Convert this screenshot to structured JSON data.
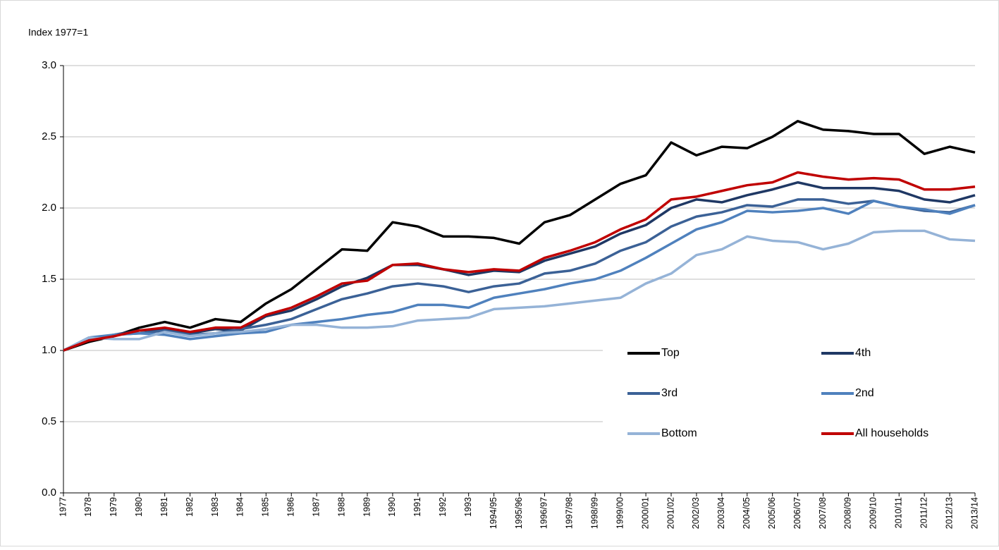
{
  "chart_data": {
    "type": "line",
    "y_axis_label": "Index 1977=1",
    "categories": [
      "1977",
      "1978",
      "1979",
      "1980",
      "1981",
      "1982",
      "1983",
      "1984",
      "1985",
      "1986",
      "1987",
      "1988",
      "1989",
      "1990",
      "1991",
      "1992",
      "1993",
      "1994/95",
      "1995/96",
      "1996/97",
      "1997/98",
      "1998/99",
      "1999/00",
      "2000/01",
      "2001/02",
      "2002/03",
      "2003/04",
      "2004/05",
      "2005/06",
      "2006/07",
      "2007/08",
      "2008/09",
      "2009/10",
      "2010/11",
      "2011/12",
      "2012/13",
      "2013/14"
    ],
    "ylim": [
      0,
      3
    ],
    "yticks": [
      {
        "value": 0,
        "label": "0.0"
      },
      0.5,
      {
        "value": 1,
        "label": "1.0"
      },
      1.5,
      {
        "value": 2,
        "label": "2.0"
      },
      2.5,
      {
        "value": 3,
        "label": "3.0"
      }
    ],
    "grid": true,
    "legend_position": "lower right",
    "series": [
      {
        "name": "Top",
        "color": "#000000",
        "values": [
          1.0,
          1.06,
          1.1,
          1.16,
          1.2,
          1.16,
          1.22,
          1.2,
          1.33,
          1.43,
          1.57,
          1.71,
          1.7,
          1.9,
          1.87,
          1.8,
          1.8,
          1.79,
          1.75,
          1.9,
          1.95,
          2.06,
          2.17,
          2.23,
          2.46,
          2.37,
          2.43,
          2.42,
          2.5,
          2.61,
          2.55,
          2.54,
          2.52,
          2.52,
          2.38,
          2.43,
          2.39
        ]
      },
      {
        "name": "4th",
        "color": "#1f3864",
        "values": [
          1.0,
          1.07,
          1.11,
          1.14,
          1.15,
          1.12,
          1.15,
          1.14,
          1.24,
          1.28,
          1.36,
          1.45,
          1.51,
          1.6,
          1.6,
          1.57,
          1.53,
          1.56,
          1.55,
          1.63,
          1.68,
          1.73,
          1.82,
          1.88,
          2.0,
          2.06,
          2.04,
          2.09,
          2.13,
          2.18,
          2.14,
          2.14,
          2.14,
          2.12,
          2.06,
          2.04,
          2.09
        ]
      },
      {
        "name": "3rd",
        "color": "#3b6196",
        "values": [
          1.0,
          1.08,
          1.11,
          1.12,
          1.14,
          1.11,
          1.12,
          1.15,
          1.18,
          1.22,
          1.29,
          1.36,
          1.4,
          1.45,
          1.47,
          1.45,
          1.41,
          1.45,
          1.47,
          1.54,
          1.56,
          1.61,
          1.7,
          1.76,
          1.87,
          1.94,
          1.97,
          2.02,
          2.01,
          2.06,
          2.06,
          2.03,
          2.05,
          2.01,
          1.98,
          1.97,
          2.02
        ]
      },
      {
        "name": "2nd",
        "color": "#4f81bd",
        "values": [
          1.0,
          1.09,
          1.11,
          1.12,
          1.11,
          1.08,
          1.1,
          1.12,
          1.13,
          1.18,
          1.2,
          1.22,
          1.25,
          1.27,
          1.32,
          1.32,
          1.3,
          1.37,
          1.4,
          1.43,
          1.47,
          1.5,
          1.56,
          1.65,
          1.75,
          1.85,
          1.9,
          1.98,
          1.97,
          1.98,
          2.0,
          1.96,
          2.05,
          2.01,
          1.99,
          1.96,
          2.02
        ]
      },
      {
        "name": "Bottom",
        "color": "#95b3d7",
        "values": [
          1.0,
          1.09,
          1.08,
          1.08,
          1.13,
          1.1,
          1.12,
          1.13,
          1.15,
          1.18,
          1.18,
          1.16,
          1.16,
          1.17,
          1.21,
          1.22,
          1.23,
          1.29,
          1.3,
          1.31,
          1.33,
          1.35,
          1.37,
          1.47,
          1.54,
          1.67,
          1.71,
          1.8,
          1.77,
          1.76,
          1.71,
          1.75,
          1.83,
          1.84,
          1.84,
          1.78,
          1.77
        ]
      },
      {
        "name": "All households",
        "color": "#c00000",
        "values": [
          1.0,
          1.07,
          1.1,
          1.14,
          1.16,
          1.13,
          1.16,
          1.16,
          1.25,
          1.3,
          1.38,
          1.47,
          1.49,
          1.6,
          1.61,
          1.57,
          1.55,
          1.57,
          1.56,
          1.65,
          1.7,
          1.76,
          1.85,
          1.92,
          2.06,
          2.08,
          2.12,
          2.16,
          2.18,
          2.25,
          2.22,
          2.2,
          2.21,
          2.2,
          2.13,
          2.13,
          2.15
        ]
      }
    ]
  }
}
